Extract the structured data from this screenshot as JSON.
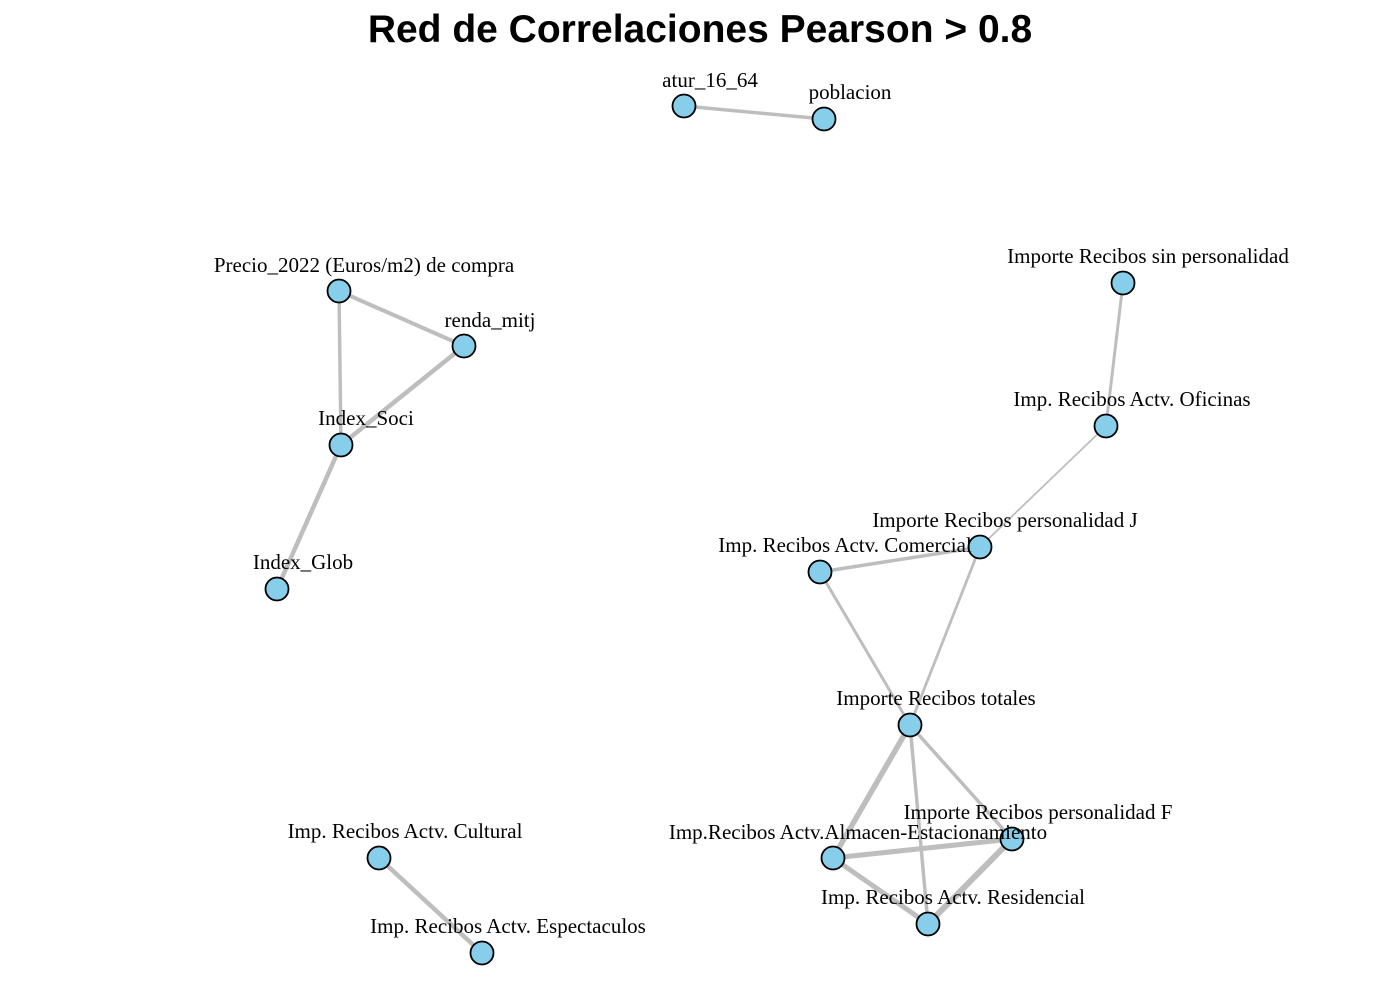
{
  "title": "Red de Correlaciones Pearson > 0.8",
  "colors": {
    "node_fill": "#87ceeb",
    "node_stroke": "#000000",
    "edge": "#bebebe"
  },
  "nodes": [
    {
      "id": "atur",
      "label": "atur_16_64"
    },
    {
      "id": "poblacion",
      "label": "poblacion"
    },
    {
      "id": "precio",
      "label": "Precio_2022 (Euros/m2) de compra"
    },
    {
      "id": "renda",
      "label": "renda_mitj"
    },
    {
      "id": "index_soci",
      "label": "Index_Soci"
    },
    {
      "id": "index_glob",
      "label": "Index_Glob"
    },
    {
      "id": "sin_pers",
      "label": "Importe Recibos sin personalidad"
    },
    {
      "id": "oficinas",
      "label": "Imp. Recibos Actv. Oficinas"
    },
    {
      "id": "pers_j",
      "label": "Importe Recibos personalidad J"
    },
    {
      "id": "comercial",
      "label": "Imp. Recibos Actv. Comercial"
    },
    {
      "id": "totales",
      "label": "Importe Recibos totales"
    },
    {
      "id": "pers_f",
      "label": "Importe Recibos personalidad F"
    },
    {
      "id": "almacen",
      "label": "Imp.Recibos Actv.Almacen-Estacionamiento"
    },
    {
      "id": "residencial",
      "label": "Imp. Recibos Actv. Residencial"
    },
    {
      "id": "cultural",
      "label": "Imp. Recibos Actv. Cultural"
    },
    {
      "id": "espectaculos",
      "label": "Imp. Recibos Actv. Espectaculos"
    }
  ],
  "edges": [
    {
      "from": "atur",
      "to": "poblacion"
    },
    {
      "from": "precio",
      "to": "renda"
    },
    {
      "from": "precio",
      "to": "index_soci"
    },
    {
      "from": "renda",
      "to": "index_soci"
    },
    {
      "from": "index_soci",
      "to": "index_glob"
    },
    {
      "from": "sin_pers",
      "to": "oficinas"
    },
    {
      "from": "oficinas",
      "to": "pers_j"
    },
    {
      "from": "comercial",
      "to": "pers_j"
    },
    {
      "from": "comercial",
      "to": "totales"
    },
    {
      "from": "pers_j",
      "to": "totales"
    },
    {
      "from": "totales",
      "to": "almacen"
    },
    {
      "from": "totales",
      "to": "pers_f"
    },
    {
      "from": "totales",
      "to": "residencial"
    },
    {
      "from": "almacen",
      "to": "pers_f"
    },
    {
      "from": "almacen",
      "to": "residencial"
    },
    {
      "from": "pers_f",
      "to": "residencial"
    },
    {
      "from": "cultural",
      "to": "espectaculos"
    }
  ]
}
